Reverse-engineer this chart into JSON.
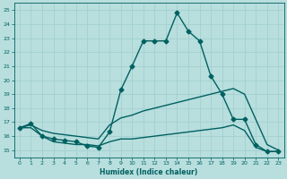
{
  "xlabel": "Humidex (Indice chaleur)",
  "xlim": [
    -0.5,
    23.5
  ],
  "ylim": [
    14.5,
    25.5
  ],
  "xticks": [
    0,
    1,
    2,
    3,
    4,
    5,
    6,
    7,
    8,
    9,
    10,
    11,
    12,
    13,
    14,
    15,
    16,
    17,
    18,
    19,
    20,
    21,
    22,
    23
  ],
  "yticks": [
    15,
    16,
    17,
    18,
    19,
    20,
    21,
    22,
    23,
    24,
    25
  ],
  "background_color": "#b8dede",
  "grid_color": "#9fcece",
  "line_color": "#006060",
  "lines": [
    {
      "x": [
        0,
        1,
        2,
        3,
        4,
        5,
        6,
        7,
        8,
        9,
        10,
        11,
        12,
        13,
        14,
        15,
        16,
        17,
        18,
        19,
        20,
        21,
        22,
        23
      ],
      "y": [
        16.6,
        16.9,
        16.0,
        15.8,
        15.7,
        15.6,
        15.3,
        15.2,
        16.3,
        19.3,
        21.0,
        22.8,
        22.8,
        22.8,
        24.8,
        23.5,
        22.8,
        20.3,
        19.0,
        17.2,
        17.2,
        15.4,
        14.9,
        14.9
      ],
      "marker": "D",
      "markersize": 2.5,
      "linewidth": 1.0
    },
    {
      "x": [
        0,
        1,
        2,
        3,
        4,
        5,
        6,
        7,
        8,
        9,
        10,
        11,
        12,
        13,
        14,
        15,
        16,
        17,
        18,
        19,
        20,
        21,
        22,
        23
      ],
      "y": [
        16.6,
        16.8,
        16.4,
        16.2,
        16.1,
        16.0,
        15.9,
        15.8,
        16.8,
        17.3,
        17.5,
        17.8,
        18.0,
        18.2,
        18.4,
        18.6,
        18.8,
        19.0,
        19.2,
        19.4,
        19.0,
        17.2,
        15.4,
        15.0
      ],
      "marker": null,
      "markersize": 0,
      "linewidth": 1.0
    },
    {
      "x": [
        0,
        1,
        2,
        3,
        4,
        5,
        6,
        7,
        8,
        9,
        10,
        11,
        12,
        13,
        14,
        15,
        16,
        17,
        18,
        19,
        20,
        21,
        22,
        23
      ],
      "y": [
        16.6,
        16.6,
        16.0,
        15.6,
        15.5,
        15.4,
        15.4,
        15.3,
        15.6,
        15.8,
        15.8,
        15.9,
        16.0,
        16.1,
        16.2,
        16.3,
        16.4,
        16.5,
        16.6,
        16.8,
        16.4,
        15.2,
        14.9,
        14.9
      ],
      "marker": null,
      "markersize": 0,
      "linewidth": 1.0
    }
  ]
}
